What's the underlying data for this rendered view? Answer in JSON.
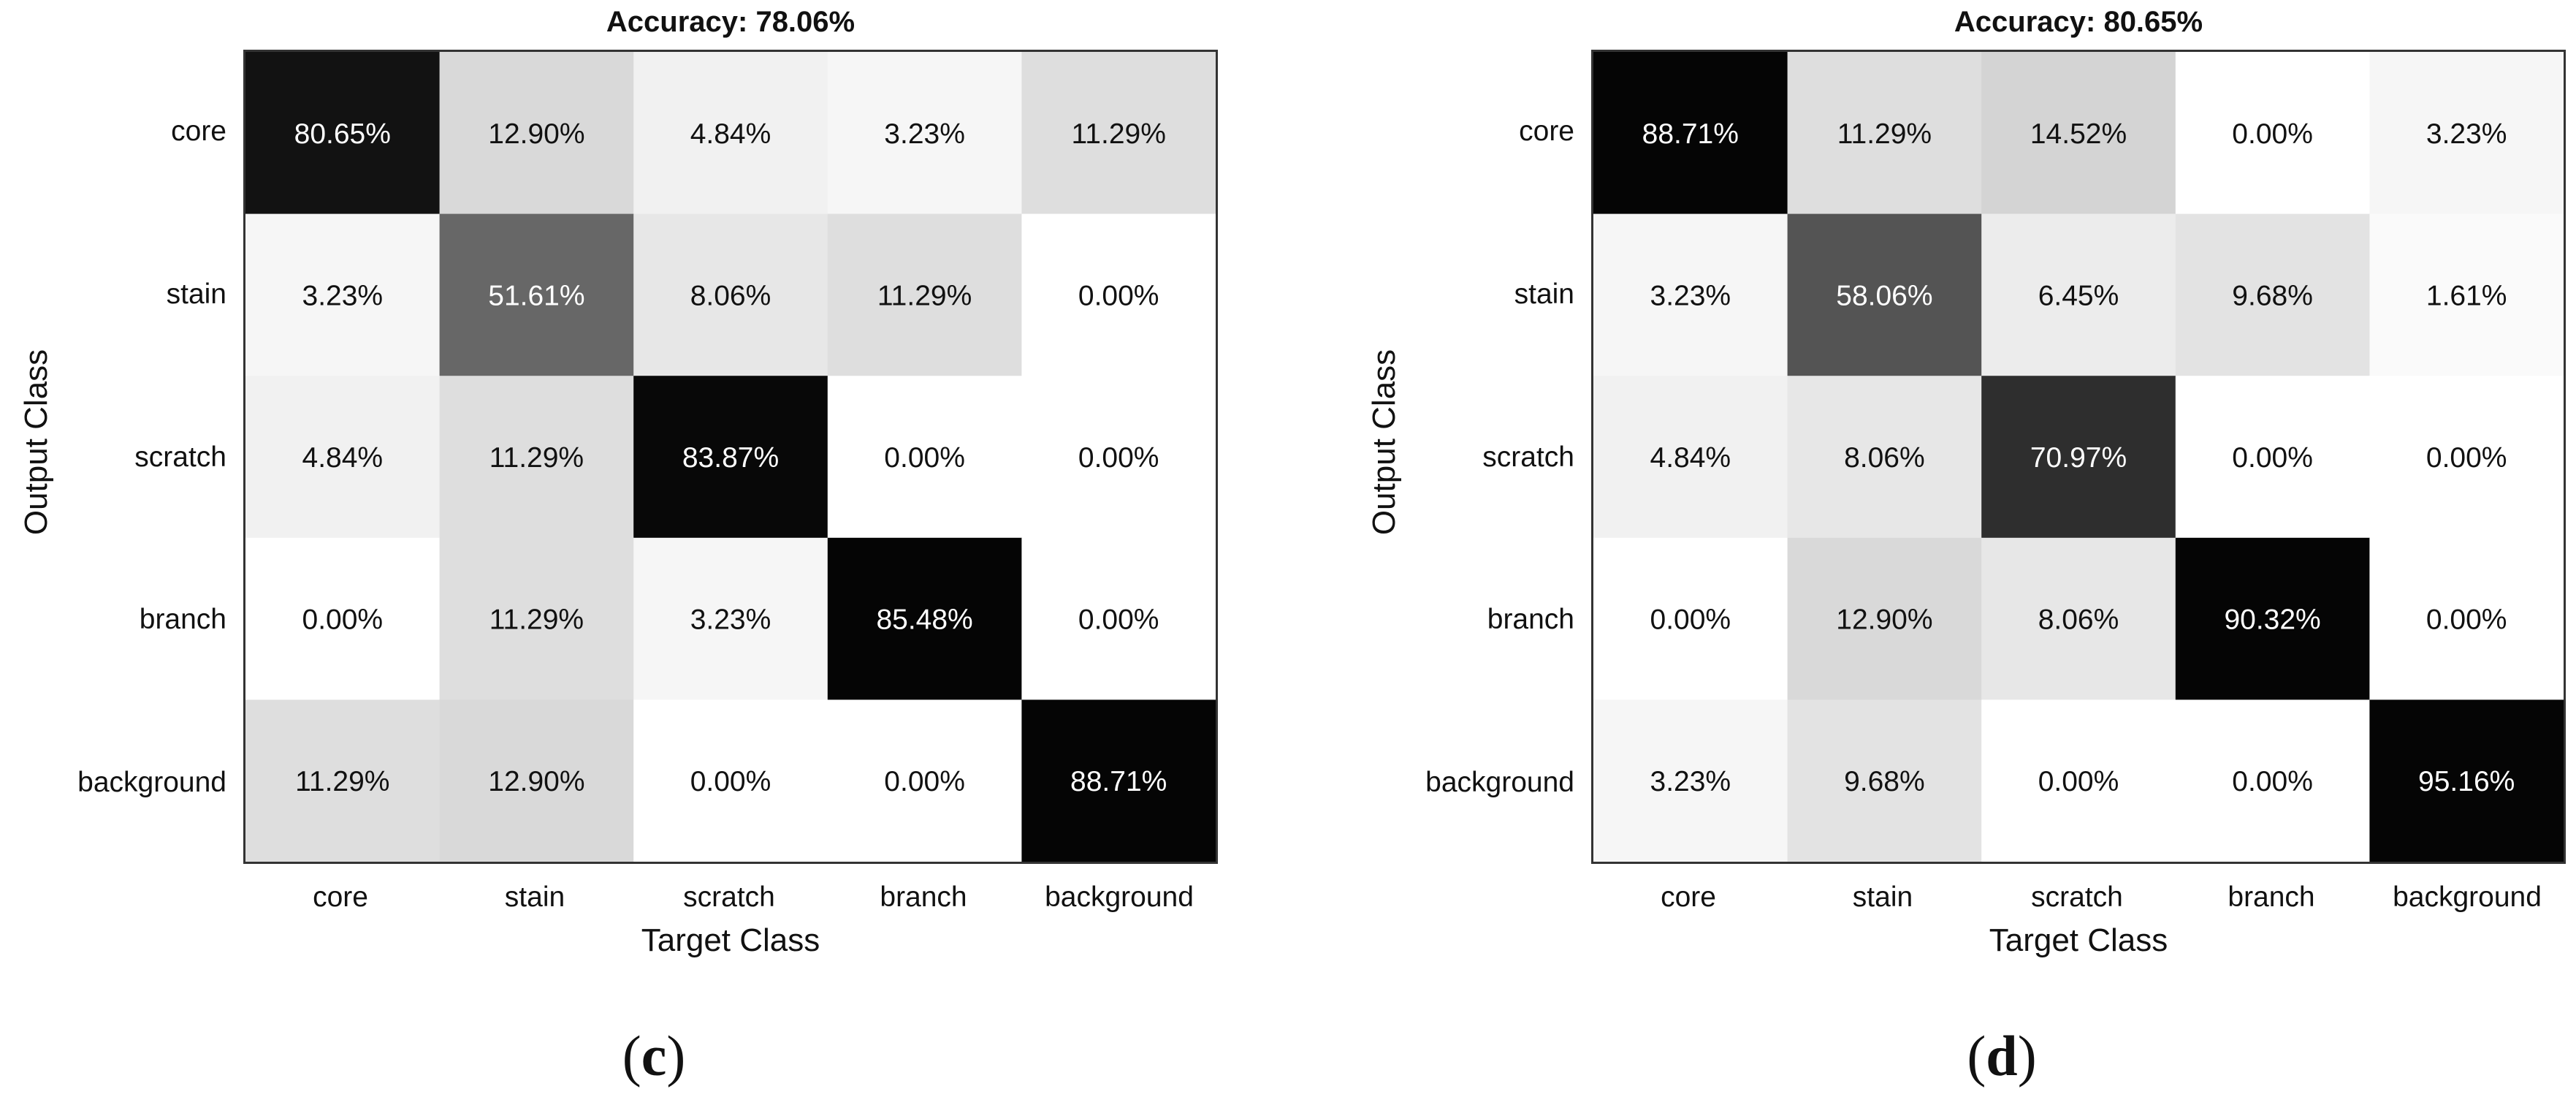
{
  "chart_data": [
    {
      "type": "heatmap",
      "title": "Accuracy: 78.06%",
      "xlabel": "Target Class",
      "ylabel": "Output Class",
      "panel_label": "c",
      "x_categories": [
        "core",
        "stain",
        "scratch",
        "branch",
        "background"
      ],
      "y_categories": [
        "core",
        "stain",
        "scratch",
        "branch",
        "background"
      ],
      "values": [
        [
          80.65,
          12.9,
          4.84,
          3.23,
          11.29
        ],
        [
          3.23,
          51.61,
          8.06,
          11.29,
          0.0
        ],
        [
          4.84,
          11.29,
          83.87,
          0.0,
          0.0
        ],
        [
          0.0,
          11.29,
          3.23,
          85.48,
          0.0
        ],
        [
          11.29,
          12.9,
          0.0,
          0.0,
          88.71
        ]
      ],
      "value_format": "percent_2dp",
      "colormap": "grayscale (white = 0%, black = high)"
    },
    {
      "type": "heatmap",
      "title": "Accuracy: 80.65%",
      "xlabel": "Target Class",
      "ylabel": "Output Class",
      "panel_label": "d",
      "x_categories": [
        "core",
        "stain",
        "scratch",
        "branch",
        "background"
      ],
      "y_categories": [
        "core",
        "stain",
        "scratch",
        "branch",
        "background"
      ],
      "values": [
        [
          88.71,
          11.29,
          14.52,
          0.0,
          3.23
        ],
        [
          3.23,
          58.06,
          6.45,
          9.68,
          1.61
        ],
        [
          4.84,
          8.06,
          70.97,
          0.0,
          0.0
        ],
        [
          0.0,
          12.9,
          8.06,
          90.32,
          0.0
        ],
        [
          3.23,
          9.68,
          0.0,
          0.0,
          95.16
        ]
      ],
      "value_format": "percent_2dp",
      "colormap": "grayscale (white = 0%, black = high)"
    }
  ]
}
